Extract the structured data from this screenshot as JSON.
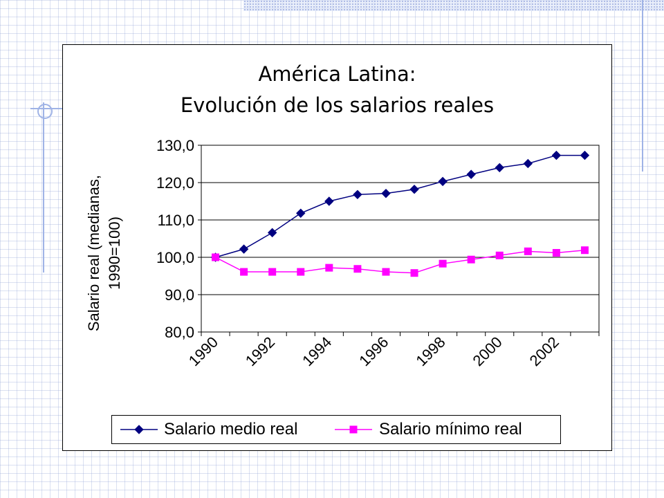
{
  "colors": {
    "series_1": "#000080",
    "series_2": "#ff00ff",
    "grid": "#000000",
    "background_grid": "#a5b4e0"
  },
  "chart_data": {
    "type": "line",
    "title": [
      "América Latina:",
      "Evolución de los salarios reales"
    ],
    "ylabel": [
      "Salario real (medianas,",
      "1990=100)"
    ],
    "xlabel": "",
    "x": [
      1990,
      1991,
      1992,
      1993,
      1994,
      1995,
      1996,
      1997,
      1998,
      1999,
      2000,
      2001,
      2002,
      2003
    ],
    "x_tick_labels": [
      "1990",
      "1992",
      "1994",
      "1996",
      "1998",
      "2000",
      "2002"
    ],
    "y_tick_labels": [
      "130,0",
      "120,0",
      "110,0",
      "100,0",
      "90,0",
      "80,0"
    ],
    "ylim": [
      80,
      130
    ],
    "grid": "horizontal",
    "legend_position": "bottom",
    "series": [
      {
        "name": "Salario medio real",
        "marker": "diamond",
        "color": "#000080",
        "values": [
          100.0,
          102.2,
          106.6,
          111.8,
          115.0,
          116.8,
          117.1,
          118.2,
          120.3,
          122.2,
          124.0,
          125.1,
          127.3,
          127.3
        ]
      },
      {
        "name": "Salario mínimo real",
        "marker": "square",
        "color": "#ff00ff",
        "values": [
          100.0,
          96.1,
          96.1,
          96.1,
          97.2,
          96.9,
          96.1,
          95.8,
          98.3,
          99.4,
          100.5,
          101.6,
          101.2,
          101.9
        ]
      }
    ]
  }
}
